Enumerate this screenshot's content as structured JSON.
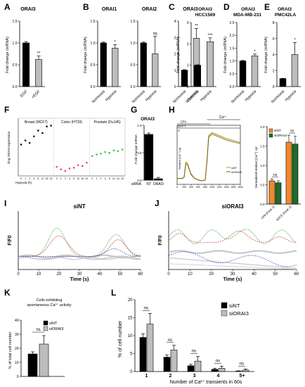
{
  "figure": {
    "panel_letters": [
      "A",
      "B",
      "C",
      "D",
      "E",
      "F",
      "G",
      "H",
      "I",
      "J",
      "K",
      "L"
    ]
  },
  "colors": {
    "black": "#000000",
    "gray": "#bdbdbd",
    "orange": "#f0892a",
    "green": "#1f6b2a",
    "trace_olive": "#b59a22",
    "trace_dark": "#6b5a10",
    "breast": "#111111",
    "colon": "#e8467c",
    "prostate": "#33c24a",
    "cell_red": "#d03040",
    "cell_green": "#38a84a",
    "cell_blue": "#3a4fd0",
    "cell_gray": "#c8c8c8"
  },
  "chart_data": [
    {
      "panel": "A",
      "type": "bar",
      "title": "ORAI3",
      "ylabel": "Fold change (mRNA)",
      "categories": [
        "-EGF",
        "+EGF"
      ],
      "values": [
        1.0,
        0.62
      ],
      "errors": [
        0.03,
        0.08
      ],
      "ylim": [
        0,
        1.5
      ],
      "yticks": [
        "0.0",
        "0.5",
        "1.0",
        "1.5"
      ],
      "significance": [
        "",
        "**"
      ]
    },
    {
      "panel": "B",
      "type": "bar",
      "ylabel": "Fold change (mRNA)",
      "subplots": [
        {
          "title": "ORAI1",
          "categories": [
            "Normoxia",
            "Hypoxia"
          ],
          "values": [
            1.0,
            0.88
          ],
          "errors": [
            0.02,
            0.08
          ],
          "ylim": [
            0,
            1.5
          ],
          "yticks": [
            "0.0",
            "0.5",
            "1.0",
            "1.5"
          ],
          "significance": [
            "",
            "*"
          ]
        },
        {
          "title": "ORAI2",
          "categories": [
            "Normoxia",
            "Hypoxia"
          ],
          "values": [
            1.0,
            0.75
          ],
          "errors": [
            0.02,
            0.4
          ],
          "ylim": [
            0,
            1.5
          ],
          "yticks": [
            "0.0",
            "0.5",
            "1.0",
            "1.5"
          ],
          "significance": [
            "",
            "ns"
          ]
        },
        {
          "title": "ORAI3",
          "categories": [
            "Normoxia",
            "Hypoxia"
          ],
          "values": [
            1.0,
            2.95
          ],
          "errors": [
            0.03,
            0.6
          ],
          "ylim": [
            0,
            4
          ],
          "yticks": [
            "0",
            "1",
            "2",
            "3",
            "4"
          ],
          "significance": [
            "",
            "**"
          ]
        }
      ]
    },
    {
      "panel": "C",
      "type": "bar",
      "title": "ORAI3 HCC1569",
      "ylabel": "Fold change (mRNA)",
      "categories": [
        "Normoxia",
        "Hypoxia"
      ],
      "values": [
        1.0,
        2.1
      ],
      "errors": [
        0.02,
        0.18
      ],
      "ylim": [
        0,
        3
      ],
      "yticks": [
        "0",
        "1",
        "2",
        "3"
      ],
      "significance": [
        "",
        "***"
      ]
    },
    {
      "panel": "D",
      "type": "bar",
      "title": "ORAI3 MDA-MB-231",
      "ylabel": "Fold change (mRNA)",
      "categories": [
        "Normoxia",
        "Hypoxia"
      ],
      "values": [
        1.0,
        1.2
      ],
      "errors": [
        0.02,
        0.07
      ],
      "ylim": [
        0,
        2.5
      ],
      "yticks": [
        "0.0",
        "0.5",
        "1.0",
        "1.5",
        "2.0",
        "2.5"
      ],
      "significance": [
        "",
        "*"
      ]
    },
    {
      "panel": "E",
      "type": "bar",
      "title": "ORAI3 PMC42LA",
      "ylabel": "Fold change (mRNA)",
      "categories": [
        "Normoxia",
        "Hypoxia"
      ],
      "values": [
        1.0,
        4.0
      ],
      "errors": [
        0.02,
        1.5
      ],
      "ylim": [
        0,
        8
      ],
      "yticks": [
        "0",
        "2",
        "4",
        "6",
        "8"
      ],
      "significance": [
        "",
        "*"
      ]
    },
    {
      "panel": "F",
      "type": "scatter",
      "ylabel": "2log ORAI3 expression",
      "xlabel": "Hypoxia (h)",
      "groups": [
        {
          "name": "Breast (MCF7)",
          "x": [
            "0",
            "1",
            "2",
            "4",
            "8",
            "12",
            "16",
            "24"
          ],
          "values": [
            6.8,
            7.3,
            7.0,
            7.8,
            8.5,
            8.2,
            9.0,
            9.1
          ]
        },
        {
          "name": "Colon (HT29)",
          "x": [
            "0",
            "1",
            "2",
            "4",
            "8",
            "12",
            "16",
            "24"
          ],
          "values": [
            4.1,
            3.8,
            3.6,
            3.9,
            4.0,
            4.3,
            4.2,
            4.6
          ]
        },
        {
          "name": "Prostate (Du145)",
          "x": [
            "0",
            "1",
            "2",
            "4",
            "8",
            "12",
            "16",
            "24"
          ],
          "values": [
            5.4,
            5.6,
            5.7,
            5.9,
            5.8,
            6.1,
            6.0,
            6.2
          ]
        }
      ],
      "ylim": [
        3,
        10
      ]
    },
    {
      "panel": "G",
      "type": "bar",
      "title": "ORAI3",
      "ylabel": "Fold change mRNA",
      "xprefix": "siRNA",
      "categories": [
        "NT",
        "ORAI3"
      ],
      "values": [
        1.0,
        0.03
      ],
      "errors": [
        0.03,
        0.03
      ],
      "ylim": [
        0,
        1.2
      ],
      "yticks": [
        "0.0",
        "0.5",
        "1.0"
      ]
    },
    {
      "panel": "H-left",
      "type": "line",
      "ylabel": "Relative [Ca²⁺] cyt",
      "labels": {
        "ca": "Ca²⁺",
        "cpa": "CPA",
        "bapta": "BAPT",
        "a": "A"
      },
      "xticks": [
        "0",
        "200",
        "400",
        "600",
        "800",
        "1000",
        "1200",
        "1400",
        "1600",
        "1800"
      ],
      "xlim": [
        0,
        1800
      ],
      "ylim": [
        0.8,
        2.8
      ],
      "series": [
        {
          "name": "siNT",
          "x": [
            0,
            150,
            200,
            250,
            300,
            350,
            400,
            500,
            600,
            700,
            800,
            850,
            900,
            1000,
            1200,
            1400,
            1600,
            1800
          ],
          "values": [
            1.0,
            1.0,
            1.05,
            1.55,
            1.5,
            1.3,
            1.15,
            1.0,
            0.95,
            0.92,
            0.95,
            1.6,
            2.45,
            2.55,
            2.45,
            2.35,
            2.28,
            2.22
          ]
        },
        {
          "name": "siORAI3",
          "x": [
            0,
            150,
            200,
            250,
            300,
            350,
            400,
            500,
            600,
            700,
            800,
            850,
            900,
            1000,
            1200,
            1400,
            1600,
            1800
          ],
          "values": [
            1.0,
            1.0,
            1.04,
            1.5,
            1.45,
            1.28,
            1.12,
            1.0,
            0.95,
            0.92,
            0.94,
            1.55,
            2.4,
            2.5,
            2.4,
            2.3,
            2.23,
            2.18
          ]
        }
      ]
    },
    {
      "panel": "H-right",
      "type": "bar",
      "ylabel": "Normalized relative [Ca²⁺] cyt",
      "categories": [
        "CPA (Peak 1)",
        "SOCE (Peak 2)"
      ],
      "series": [
        {
          "name": "siNT",
          "values": [
            0.6,
            1.6
          ],
          "errors": [
            0.05,
            0.18
          ]
        },
        {
          "name": "siORAI3",
          "values": [
            0.55,
            1.55
          ],
          "errors": [
            0.05,
            0.2
          ]
        }
      ],
      "ylim": [
        0,
        2.0
      ],
      "yticks": [
        "0.0",
        "0.5",
        "1.0",
        "1.5",
        "2.0"
      ],
      "significance": [
        "ns",
        "ns"
      ]
    },
    {
      "panel": "I",
      "type": "line",
      "title": "siNT",
      "ylabel": "F/F0",
      "xlabel": "Time (s)",
      "xticks": [
        "0",
        "10",
        "20",
        "30",
        "40",
        "50",
        "60"
      ],
      "xlim": [
        0,
        60
      ],
      "ylim": [
        0.9,
        1.35
      ]
    },
    {
      "panel": "J",
      "type": "line",
      "title": "siORAI3",
      "ylabel": "F/F0",
      "xlabel": "Time (s)",
      "xticks": [
        "0",
        "10",
        "20",
        "30",
        "40",
        "50",
        "60"
      ],
      "xlim": [
        0,
        60
      ],
      "ylim": [
        0.85,
        1.35
      ]
    },
    {
      "panel": "K",
      "type": "bar",
      "title": "Cells exhibiting spontaneous Ca²⁺ activity",
      "ylabel": "% of total cell number",
      "categories": [
        "siNT",
        "siORAI3"
      ],
      "values": [
        16,
        23
      ],
      "errors": [
        1.5,
        6
      ],
      "ylim": [
        0,
        40
      ],
      "yticks": [
        "0",
        "10",
        "20",
        "30",
        "40"
      ],
      "significance": [
        "ns"
      ]
    },
    {
      "panel": "L",
      "type": "bar",
      "ylabel": "% of cell number",
      "xlabel": "Number of Ca²⁺ transients in 60s",
      "categories": [
        "1",
        "2",
        "3",
        "4",
        "5+"
      ],
      "series": [
        {
          "name": "siNT",
          "values": [
            9.5,
            4.0,
            1.6,
            0.6,
            0.1
          ],
          "errors": [
            1.0,
            0.6,
            0.4,
            0.3,
            0.1
          ]
        },
        {
          "name": "siORAI3",
          "values": [
            13.2,
            6.0,
            2.9,
            0.9,
            0.4
          ],
          "errors": [
            3.0,
            1.3,
            1.3,
            0.6,
            0.3
          ]
        }
      ],
      "ylim": [
        0,
        20
      ],
      "yticks": [
        "0",
        "5",
        "10",
        "15",
        "20"
      ],
      "significance": [
        "ns",
        "ns",
        "ns",
        "ns",
        "ns"
      ]
    }
  ]
}
